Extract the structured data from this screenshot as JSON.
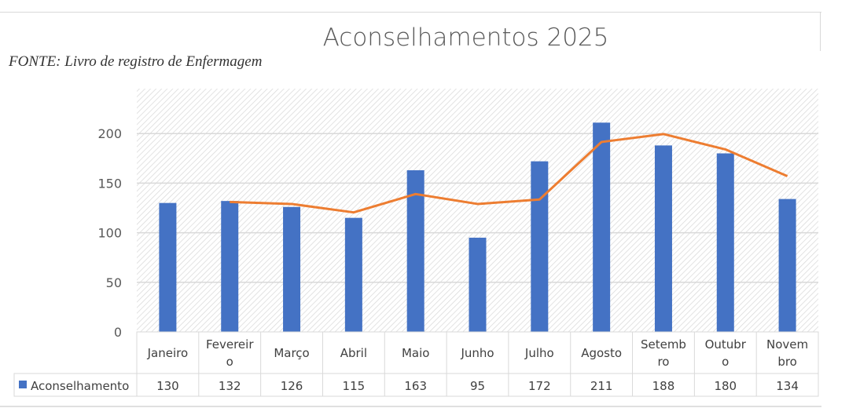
{
  "chart_data": {
    "type": "bar",
    "title": "Aconselhamentos 2025",
    "source": "FONTE: Livro de registro de Enfermagem",
    "categories": [
      "Janeiro",
      "Fevereiro",
      "Março",
      "Abril",
      "Maio",
      "Junho",
      "Julho",
      "Agosto",
      "Setembro",
      "Outubro",
      "Novembro"
    ],
    "category_labels_wrapped": [
      [
        "Janeiro"
      ],
      [
        "Fevereir",
        "o"
      ],
      [
        "Março"
      ],
      [
        "Abril"
      ],
      [
        "Maio"
      ],
      [
        "Junho"
      ],
      [
        "Julho"
      ],
      [
        "Agosto"
      ],
      [
        "Setemb",
        "ro"
      ],
      [
        "Outubr",
        "o"
      ],
      [
        "Novem",
        "bro"
      ]
    ],
    "series": [
      {
        "name": "Aconselhamento",
        "values": [
          130,
          132,
          126,
          115,
          163,
          95,
          172,
          211,
          188,
          180,
          134
        ],
        "color": "#4472C4"
      }
    ],
    "trendline": {
      "type": "2-period moving average",
      "values": [
        null,
        131,
        129,
        120.5,
        139,
        129,
        133.5,
        191.5,
        199.5,
        184,
        157
      ],
      "color": "#ED7D31"
    },
    "yticks": [
      0,
      50,
      100,
      150,
      200
    ],
    "ylim": [
      0,
      250
    ],
    "grid": true,
    "legend": "data-table",
    "data_table": true
  }
}
